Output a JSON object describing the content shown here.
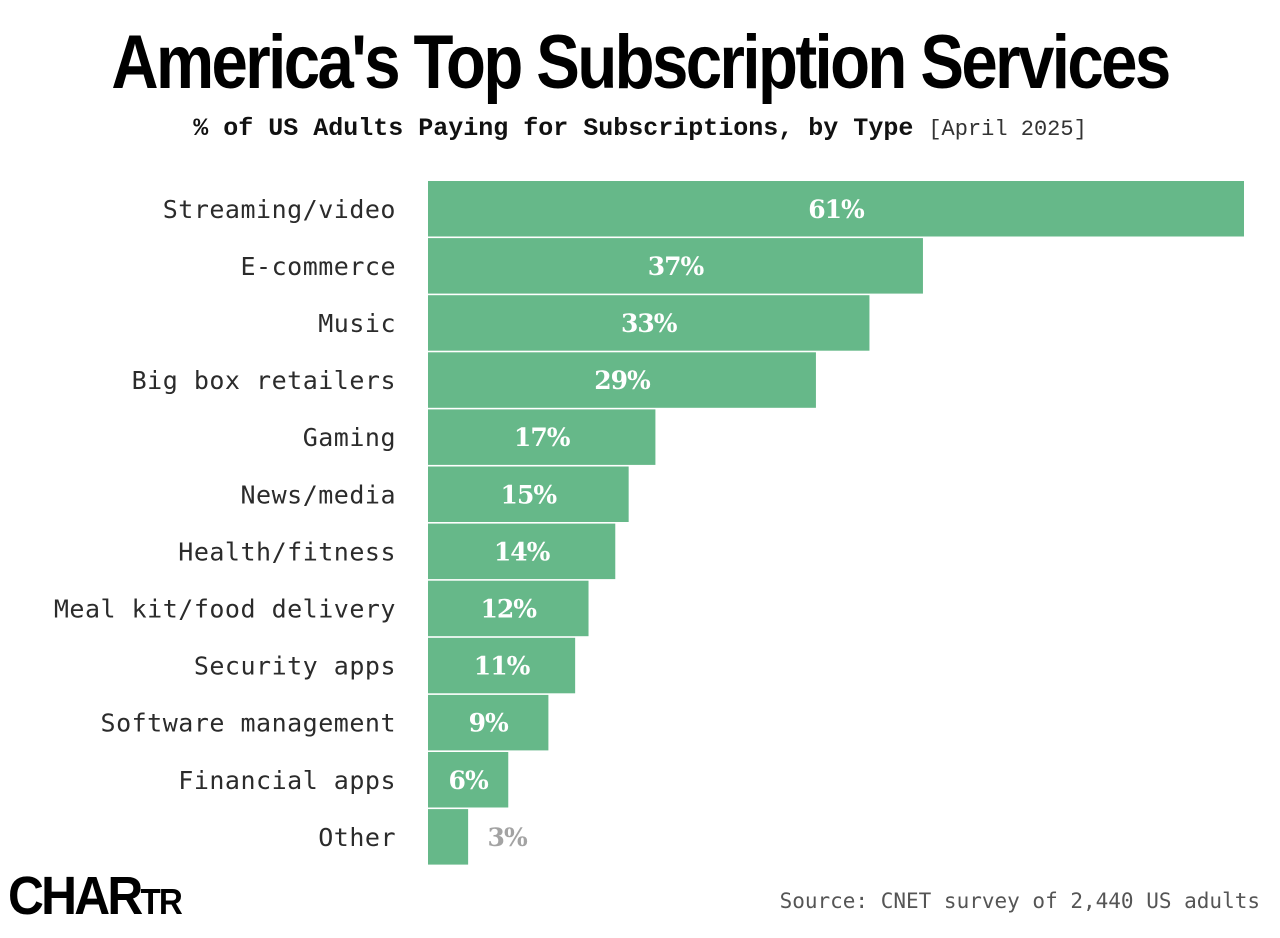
{
  "title": "America's Top Subscription Services",
  "subtitle": "% of US Adults Paying for Subscriptions, by Type",
  "subtitle_date": "[April 2025]",
  "logo": {
    "part1": "CHAR",
    "part2": "TR"
  },
  "source": "Source: CNET survey of 2,440 US adults",
  "colors": {
    "bar": "#66b889",
    "bar_label": "#ffffff",
    "outside_label": "#a3a3a3",
    "category_text": "#2b2b2b"
  },
  "chart_data": {
    "type": "bar",
    "orientation": "horizontal",
    "categories": [
      "Streaming/video",
      "E-commerce",
      "Music",
      "Big box retailers",
      "Gaming",
      "News/media",
      "Health/fitness",
      "Meal kit/food delivery",
      "Security apps",
      "Software management",
      "Financial apps",
      "Other"
    ],
    "values": [
      61,
      37,
      33,
      29,
      17,
      15,
      14,
      12,
      11,
      9,
      6,
      3
    ],
    "value_labels": [
      "61%",
      "37%",
      "33%",
      "29%",
      "17%",
      "15%",
      "14%",
      "12%",
      "11%",
      "9%",
      "6%",
      "3%"
    ],
    "title": "America's Top Subscription Services",
    "xlabel": "",
    "ylabel": "",
    "xlim": [
      0,
      61
    ],
    "grid": false,
    "legend": "none"
  }
}
